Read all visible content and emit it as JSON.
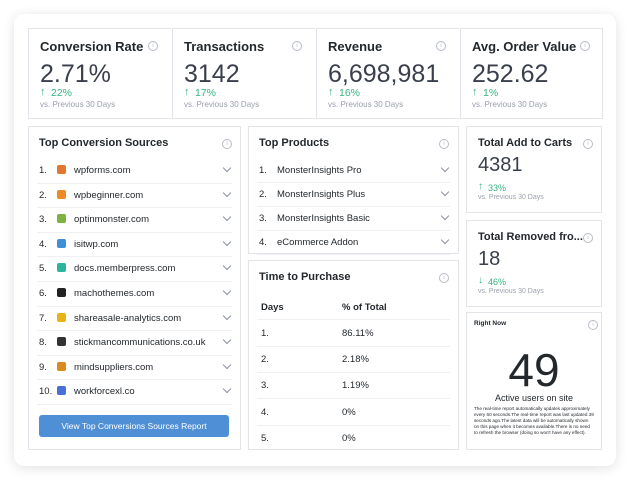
{
  "stats": [
    {
      "title": "Conversion Rate",
      "value": "2.71%",
      "change": "22%",
      "comparison": "vs. Previous 30 Days"
    },
    {
      "title": "Transactions",
      "value": "3142",
      "change": "17%",
      "comparison": "vs. Previous 30 Days"
    },
    {
      "title": "Revenue",
      "value": "6,698,981",
      "change": "16%",
      "comparison": "vs. Previous 30 Days"
    },
    {
      "title": "Avg. Order Value",
      "value": "252.62",
      "change": "1%",
      "comparison": "vs. Previous 30 Days"
    }
  ],
  "top_conversion_sources": {
    "title": "Top Conversion Sources",
    "rows": [
      {
        "rank": "1.",
        "site": "wpforms.com"
      },
      {
        "rank": "2.",
        "site": "wpbeginner.com"
      },
      {
        "rank": "3.",
        "site": "optinmonster.com"
      },
      {
        "rank": "4.",
        "site": "isitwp.com"
      },
      {
        "rank": "5.",
        "site": "docs.memberpress.com"
      },
      {
        "rank": "6.",
        "site": "machothemes.com"
      },
      {
        "rank": "7.",
        "site": "shareasale-analytics.com"
      },
      {
        "rank": "8.",
        "site": "stickmancommunications.co.uk"
      },
      {
        "rank": "9.",
        "site": "mindsuppliers.com"
      },
      {
        "rank": "10.",
        "site": "workforcexl.co"
      }
    ],
    "button": "View Top Conversions Sources Report"
  },
  "top_products": {
    "title": "Top Products",
    "rows": [
      {
        "rank": "1.",
        "name": "MonsterInsights Pro"
      },
      {
        "rank": "2.",
        "name": "MonsterInsights Plus"
      },
      {
        "rank": "3.",
        "name": "MonsterInsights Basic"
      },
      {
        "rank": "4.",
        "name": "eCommerce Addon"
      }
    ]
  },
  "time_to_purchase": {
    "title": "Time to Purchase",
    "headers": [
      "Days",
      "% of Total"
    ],
    "rows": [
      [
        "1.",
        "86.11%"
      ],
      [
        "2.",
        "2.18%"
      ],
      [
        "3.",
        "1.19%"
      ],
      [
        "4.",
        "0%"
      ],
      [
        "5.",
        "0%"
      ]
    ]
  },
  "side_stats": [
    {
      "title": "Total Add to Carts",
      "value": "4381",
      "change": "33%",
      "direction": "up",
      "comparison": "vs. Previous 30 Days"
    },
    {
      "title": "Total Removed fro...",
      "value": "18",
      "change": "46%",
      "direction": "down",
      "comparison": "vs. Previous 30 Days"
    }
  ],
  "right_now": {
    "title": "Right Now",
    "value": "49",
    "label": "Active users on site",
    "note": "The real-time report automatically updates approximately every 60 seconds.The real-time report was last updated 39 seconds ago.The latest data will be automatically shown on this page when it becomes available.There is no need to refresh the browser (doing so won't have any effect)."
  }
}
